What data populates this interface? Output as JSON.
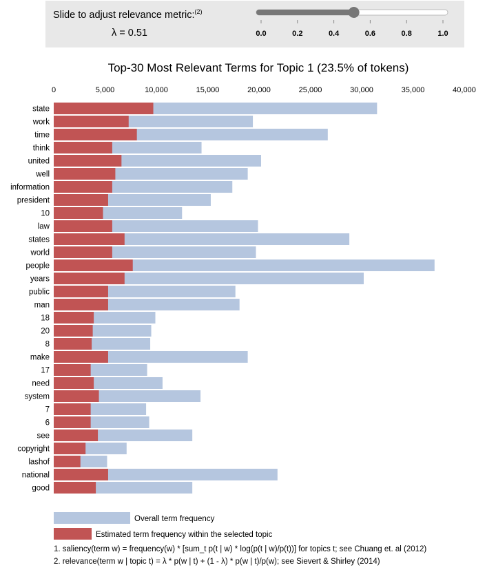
{
  "lambda_control": {
    "label": "Slide to adjust relevance metric:",
    "footnote_ref": "(2)",
    "value_text": "λ = 0.51",
    "value": 0.51,
    "ticks": [
      "0.0",
      "0.2",
      "0.4",
      "0.6",
      "0.8",
      "1.0"
    ]
  },
  "chart_data": {
    "type": "bar",
    "orientation": "horizontal",
    "title": "Top-30 Most Relevant Terms for Topic 1 (23.5% of tokens)",
    "xlim": [
      0,
      40000
    ],
    "x_ticks": [
      "0",
      "5,000",
      "10,000",
      "15,000",
      "20,000",
      "25,000",
      "30,000",
      "35,000",
      "40,000"
    ],
    "categories": [
      "state",
      "work",
      "time",
      "think",
      "united",
      "well",
      "information",
      "president",
      "10",
      "law",
      "states",
      "world",
      "people",
      "years",
      "public",
      "man",
      "18",
      "20",
      "8",
      "make",
      "17",
      "need",
      "system",
      "7",
      "6",
      "see",
      "copyright",
      "lashof",
      "national",
      "good"
    ],
    "series": [
      {
        "name": "Overall term frequency",
        "color": "#b5c6df",
        "values": [
          31500,
          19400,
          26700,
          14400,
          20200,
          18900,
          17400,
          15300,
          12500,
          19900,
          28800,
          19700,
          37100,
          30200,
          17700,
          18100,
          9900,
          9500,
          9400,
          18900,
          9100,
          10600,
          14300,
          9000,
          9300,
          13500,
          7100,
          5200,
          21800,
          13500
        ]
      },
      {
        "name": "Estimated term frequency within the selected topic",
        "color": "#c15454",
        "values": [
          9700,
          7300,
          8100,
          5700,
          6600,
          6000,
          5700,
          5300,
          4800,
          5700,
          6900,
          5700,
          7700,
          6900,
          5300,
          5300,
          3900,
          3800,
          3700,
          5300,
          3600,
          3900,
          4400,
          3600,
          3600,
          4300,
          3100,
          2600,
          5300,
          4100
        ]
      }
    ]
  },
  "footnotes": [
    "1. saliency(term w) = frequency(w) * [sum_t p(t | w) * log(p(t | w)/p(t))] for topics t; see Chuang et. al (2012)",
    "2. relevance(term w | topic t) = λ * p(w | t) + (1 - λ) * p(w | t)/p(w); see Sievert & Shirley (2014)"
  ]
}
